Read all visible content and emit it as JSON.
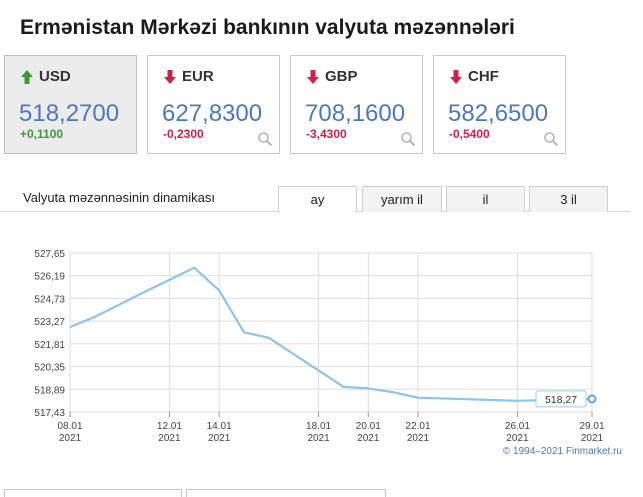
{
  "page": {
    "title": "Ermənistan Mərkəzi bankının valyuta məzənnələri"
  },
  "cards": [
    {
      "code": "USD",
      "value": "518,2700",
      "change": "+0,1100",
      "direction": "up",
      "active": true
    },
    {
      "code": "EUR",
      "value": "627,8300",
      "change": "-0,2300",
      "direction": "down",
      "active": false
    },
    {
      "code": "GBP",
      "value": "708,1600",
      "change": "-3,4300",
      "direction": "down",
      "active": false
    },
    {
      "code": "CHF",
      "value": "582,6500",
      "change": "-0,5400",
      "direction": "down",
      "active": false
    }
  ],
  "tabs": {
    "heading": "Valyuta məzənnəsinin dinamikası",
    "items": [
      "ay",
      "yarım il",
      "il",
      "3 il"
    ],
    "selected": "ay"
  },
  "colors": {
    "up": "#3a9a3a",
    "down": "#d0204a",
    "line": "#8cc4ec",
    "value": "#4a7ab8"
  },
  "chart_data": {
    "type": "line",
    "x_ticks": [
      {
        "day": "08.01",
        "year": "2021"
      },
      {
        "day": "12.01",
        "year": "2021"
      },
      {
        "day": "14.01",
        "year": "2021"
      },
      {
        "day": "18.01",
        "year": "2021"
      },
      {
        "day": "20.01",
        "year": "2021"
      },
      {
        "day": "22.01",
        "year": "2021"
      },
      {
        "day": "26.01",
        "year": "2021"
      },
      {
        "day": "29.01",
        "year": "2021"
      }
    ],
    "y_ticks": [
      "527,65",
      "526,19",
      "524,73",
      "523,27",
      "521,81",
      "520,35",
      "518,89",
      "517,43"
    ],
    "ylim": [
      517.43,
      527.65
    ],
    "series": [
      {
        "points": [
          {
            "x": "2021-01-08",
            "y": 522.89
          },
          {
            "x": "2021-01-09",
            "y": 523.55
          },
          {
            "x": "2021-01-11",
            "y": 525.15
          },
          {
            "x": "2021-01-13",
            "y": 526.7
          },
          {
            "x": "2021-01-14",
            "y": 525.25
          },
          {
            "x": "2021-01-15",
            "y": 522.55
          },
          {
            "x": "2021-01-16",
            "y": 522.2
          },
          {
            "x": "2021-01-19",
            "y": 519.05
          },
          {
            "x": "2021-01-20",
            "y": 518.95
          },
          {
            "x": "2021-01-21",
            "y": 518.7
          },
          {
            "x": "2021-01-22",
            "y": 518.35
          },
          {
            "x": "2021-01-26",
            "y": 518.15
          },
          {
            "x": "2021-01-29",
            "y": 518.27
          }
        ]
      }
    ],
    "last_label": "518,27",
    "grid": true,
    "credit": "© 1994–2021 Finmarket.ru"
  }
}
